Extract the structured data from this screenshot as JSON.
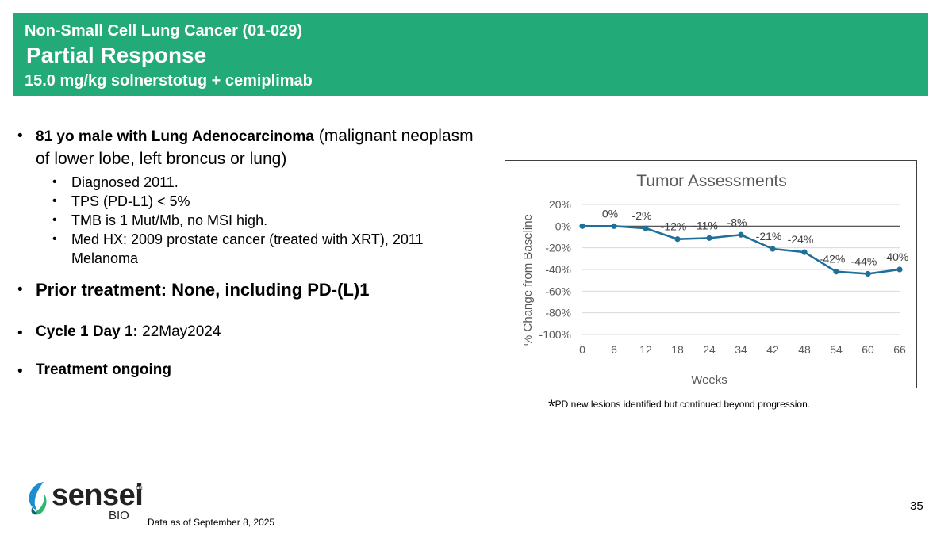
{
  "header": {
    "line1": "Non-Small Cell Lung Cancer (01-029)",
    "line2": "Partial Response",
    "line3": "15.0 mg/kg solnerstotug + cemiplimab",
    "color": "#22ab78"
  },
  "bullets": {
    "patient_bold": "81 yo male with Lung Adenocarcinoma",
    "patient_rest_1": " (malignant neoplasm",
    "patient_rest_2": "of lower lobe, left broncus or lung)",
    "sub_items": [
      "Diagnosed 2011.",
      "TPS (PD-L1) < 5%",
      "TMB is 1 Mut/Mb, no MSI high.",
      "Med HX: 2009 prostate cancer (treated with XRT), 2011",
      "Melanoma"
    ],
    "prior_treatment": "Prior treatment: None, including PD-(L)1",
    "cycle_label": "Cycle 1 Day 1:",
    "cycle_value": " 22May2024",
    "ongoing": "Treatment ongoing",
    "bullet_char": "•"
  },
  "chart_data": {
    "type": "line",
    "title": "Tumor Assessments",
    "xlabel": "Weeks",
    "ylabel": "% Change from Baseline",
    "x": [
      "0",
      "6",
      "12",
      "18",
      "24",
      "34",
      "42",
      "48",
      "54",
      "60",
      "66"
    ],
    "y": [
      0,
      0,
      -2,
      -12,
      -11,
      -8,
      -21,
      -24,
      -42,
      -44,
      -40
    ],
    "data_labels": [
      "",
      "0%",
      "-2%",
      "-12%",
      "-11%",
      "-8%",
      "-21%",
      "-24%",
      "-42%",
      "-44%",
      "-40%"
    ],
    "yticks": [
      "20%",
      "0%",
      "-20%",
      "-40%",
      "-60%",
      "-80%",
      "-100%"
    ],
    "ytick_values": [
      20,
      0,
      -20,
      -40,
      -60,
      -80,
      -100
    ],
    "ylim": [
      -100,
      20
    ],
    "grid": true,
    "line_color": "#1f6f9a"
  },
  "footnote": {
    "star": "*",
    "text": "PD new lesions identified but continued beyond progression."
  },
  "logo": {
    "word": "sensei",
    "tm": "TM",
    "bio": "BIO"
  },
  "data_as_of": "Data as of September 8, 2025",
  "page_number": "35"
}
